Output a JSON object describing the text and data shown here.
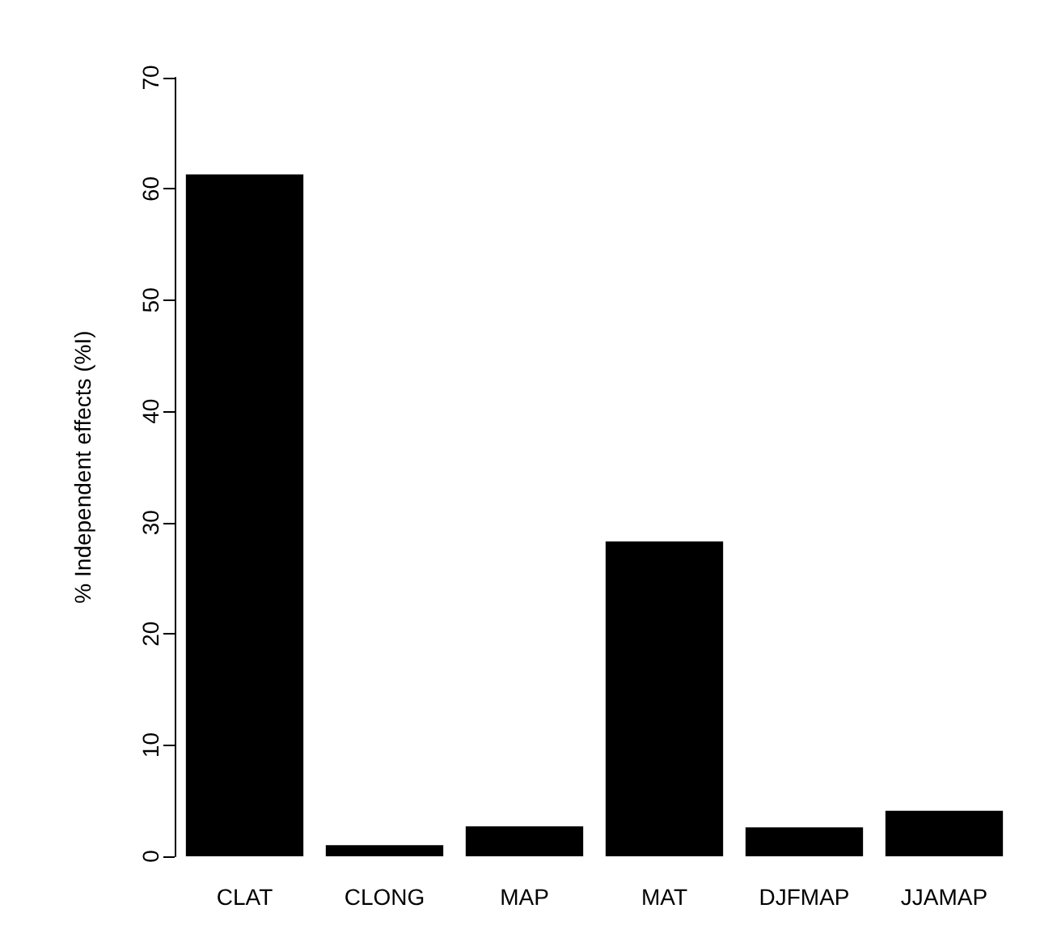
{
  "chart_data": {
    "type": "bar",
    "ylabel": "% Independent effects (%I)",
    "categories": [
      "CLAT",
      "CLONG",
      "MAP",
      "MAT",
      "DJFMAP",
      "JJAMAP"
    ],
    "values": [
      61.3,
      1.0,
      2.7,
      28.3,
      2.6,
      4.1
    ],
    "color": "#000000",
    "ylim": [
      0,
      70
    ],
    "yticks": [
      0,
      10,
      20,
      30,
      40,
      50,
      60,
      70
    ],
    "grid": false
  }
}
